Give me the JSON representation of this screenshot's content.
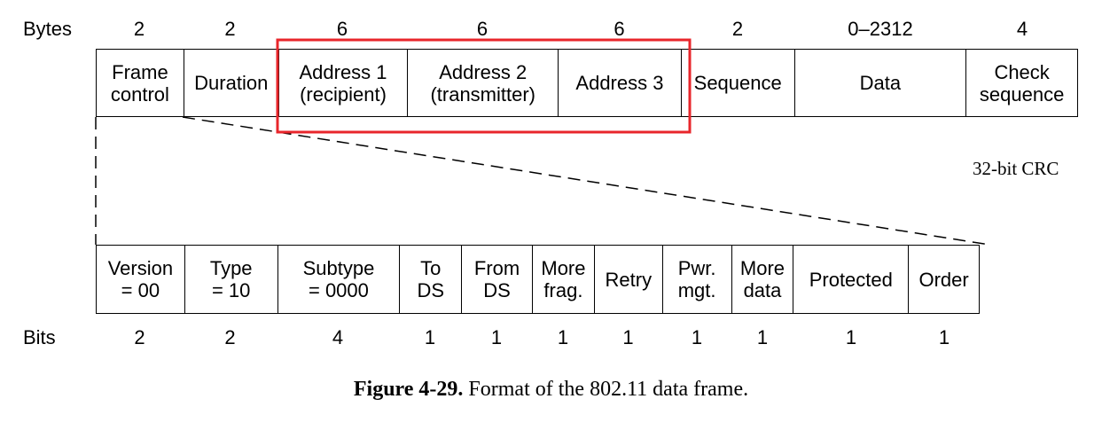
{
  "top": {
    "units_label": "Bytes",
    "fields": [
      {
        "label": "Frame\ncontrol",
        "size": "2"
      },
      {
        "label": "Duration",
        "size": "2"
      },
      {
        "label": "Address 1\n(recipient)",
        "size": "6"
      },
      {
        "label": "Address 2\n(transmitter)",
        "size": "6"
      },
      {
        "label": "Address 3",
        "size": "6"
      },
      {
        "label": "Sequence",
        "size": "2"
      },
      {
        "label": "Data",
        "size": "0–2312"
      },
      {
        "label": "Check\nsequence",
        "size": "4"
      }
    ],
    "check_note": "32-bit CRC",
    "highlight_color": "#e8262b"
  },
  "bottom": {
    "units_label": "Bits",
    "fields": [
      {
        "label": "Version\n= 00",
        "size": "2"
      },
      {
        "label": "Type\n= 10",
        "size": "2"
      },
      {
        "label": "Subtype\n= 0000",
        "size": "4"
      },
      {
        "label": "To\nDS",
        "size": "1"
      },
      {
        "label": "From\nDS",
        "size": "1"
      },
      {
        "label": "More\nfrag.",
        "size": "1"
      },
      {
        "label": "Retry",
        "size": "1"
      },
      {
        "label": "Pwr.\nmgt.",
        "size": "1"
      },
      {
        "label": "More\ndata",
        "size": "1"
      },
      {
        "label": "Protected",
        "size": "1"
      },
      {
        "label": "Order",
        "size": "1"
      }
    ]
  },
  "caption": {
    "figure": "Figure 4-29.",
    "text": " Format of the 802.11 data frame."
  }
}
